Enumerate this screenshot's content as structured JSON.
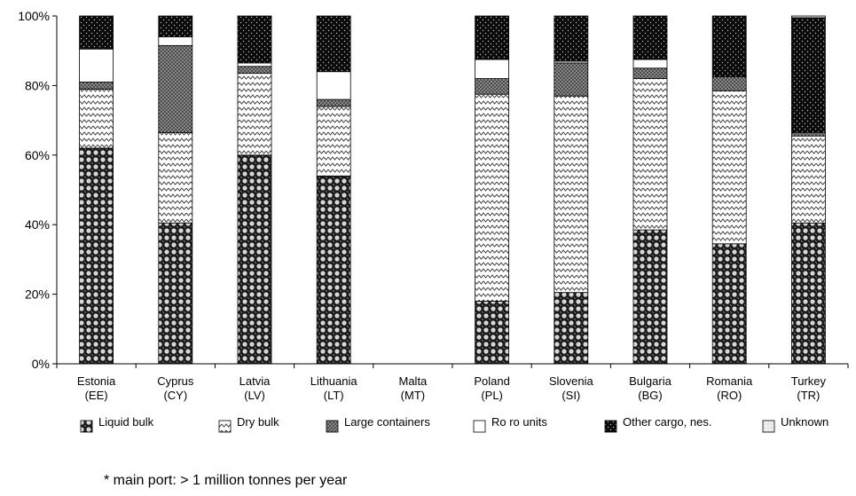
{
  "chart_data": {
    "type": "bar",
    "stacked": true,
    "categories": [
      [
        "Estonia",
        "(EE)"
      ],
      [
        "Cyprus",
        "(CY)"
      ],
      [
        "Latvia",
        "(LV)"
      ],
      [
        "Lithuania",
        "(LT)"
      ],
      [
        "Malta",
        "(MT)"
      ],
      [
        "Poland",
        "(PL)"
      ],
      [
        "Slovenia",
        "(SI)"
      ],
      [
        "Bulgaria",
        "(BG)"
      ],
      [
        "Romania",
        "(RO)"
      ],
      [
        "Turkey",
        "(TR)"
      ]
    ],
    "series": [
      {
        "name": "Liquid bulk",
        "pattern": "dots-large",
        "values": [
          62,
          40.5,
          60,
          54,
          0,
          18,
          20.5,
          38.5,
          34.5,
          40.5
        ]
      },
      {
        "name": "Dry bulk",
        "pattern": "zigzag",
        "values": [
          17,
          26,
          23.5,
          20,
          0,
          59.5,
          56.5,
          43.5,
          44,
          25
        ]
      },
      {
        "name": "Large containers",
        "pattern": "crosshatch",
        "values": [
          2,
          25,
          2,
          2,
          0,
          4.5,
          9.5,
          3,
          4,
          1
        ]
      },
      {
        "name": "Ro ro units",
        "pattern": "white",
        "values": [
          9.5,
          2.5,
          1,
          8,
          0,
          5.5,
          0.5,
          2.5,
          0,
          0
        ]
      },
      {
        "name": "Other cargo, nes.",
        "pattern": "dots-small",
        "values": [
          9.5,
          6,
          13.5,
          16,
          0,
          12.5,
          13,
          12.5,
          17.5,
          33
        ]
      },
      {
        "name": "Unknown",
        "pattern": "light",
        "values": [
          0,
          0,
          0,
          0,
          0,
          0,
          0,
          0,
          0,
          0.5
        ]
      }
    ],
    "yticks": [
      "0%",
      "20%",
      "40%",
      "60%",
      "80%",
      "100%"
    ],
    "ylim": [
      0,
      100
    ],
    "legend": "bottom",
    "grid": false
  },
  "footnote": "* main port: > 1 million tonnes per year"
}
